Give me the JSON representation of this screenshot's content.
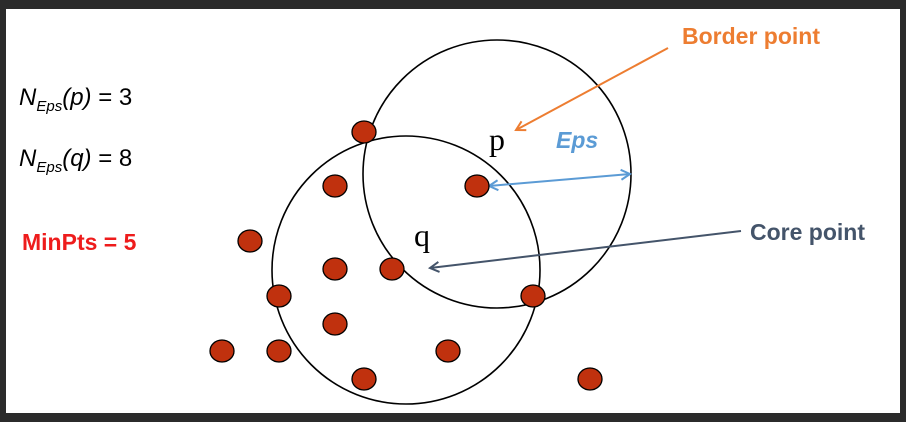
{
  "formulas": {
    "neps_p": {
      "symbol": "N",
      "subscript": "Eps",
      "arg": "(p)",
      "value": "= 3"
    },
    "neps_q": {
      "symbol": "N",
      "subscript": "Eps",
      "arg": "(q)",
      "value": "= 8"
    }
  },
  "minpts_label": "MinPts = 5",
  "labels": {
    "border_point": "Border point",
    "core_point": "Core point",
    "eps": "Eps",
    "p": "p",
    "q": "q"
  },
  "colors": {
    "point_fill": "#c0310e",
    "border_arrow": "#ed7d31",
    "core_arrow": "#44546a",
    "eps_arrow": "#5b9bd5",
    "minpts_text": "#ee1c1c"
  }
}
